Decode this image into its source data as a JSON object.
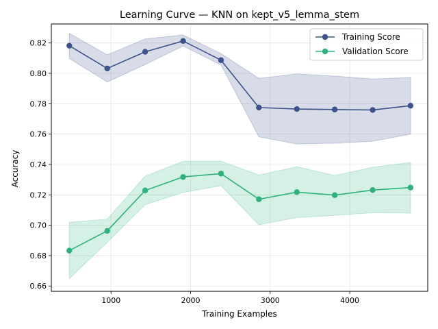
{
  "chart_data": {
    "type": "line",
    "title": "Learning Curve — KNN on kept_v5_lemma_stem",
    "xlabel": "Training Examples",
    "ylabel": "Accuracy",
    "xlim": [
      250,
      4980
    ],
    "ylim": [
      0.6565,
      0.8325
    ],
    "xticks": [
      1000,
      2000,
      3000,
      4000
    ],
    "yticks": [
      0.66,
      0.68,
      0.7,
      0.72,
      0.74,
      0.76,
      0.78,
      0.8,
      0.82
    ],
    "grid": true,
    "legend_position": "top-right",
    "x": [
      476,
      953,
      1429,
      1906,
      2382,
      2858,
      3335,
      3811,
      4288,
      4764
    ],
    "series": [
      {
        "name": "Training Score",
        "color": "#3b528b",
        "values": [
          0.8182,
          0.8032,
          0.8142,
          0.8213,
          0.8087,
          0.7775,
          0.7765,
          0.7762,
          0.7759,
          0.7787
        ],
        "lower": [
          0.8098,
          0.7943,
          0.8058,
          0.818,
          0.8055,
          0.7582,
          0.7535,
          0.754,
          0.7553,
          0.76
        ],
        "upper": [
          0.8264,
          0.8122,
          0.8227,
          0.8253,
          0.813,
          0.7967,
          0.7996,
          0.7982,
          0.7963,
          0.7973
        ]
      },
      {
        "name": "Validation Score",
        "color": "#2eb27c",
        "values": [
          0.6833,
          0.6963,
          0.7229,
          0.7318,
          0.734,
          0.7171,
          0.7218,
          0.7198,
          0.7232,
          0.7248
        ],
        "lower": [
          0.6649,
          0.6887,
          0.7135,
          0.7216,
          0.726,
          0.7003,
          0.705,
          0.7065,
          0.7083,
          0.708
        ],
        "upper": [
          0.7019,
          0.704,
          0.7323,
          0.7421,
          0.7421,
          0.7331,
          0.7385,
          0.7327,
          0.7382,
          0.7414
        ]
      }
    ]
  }
}
